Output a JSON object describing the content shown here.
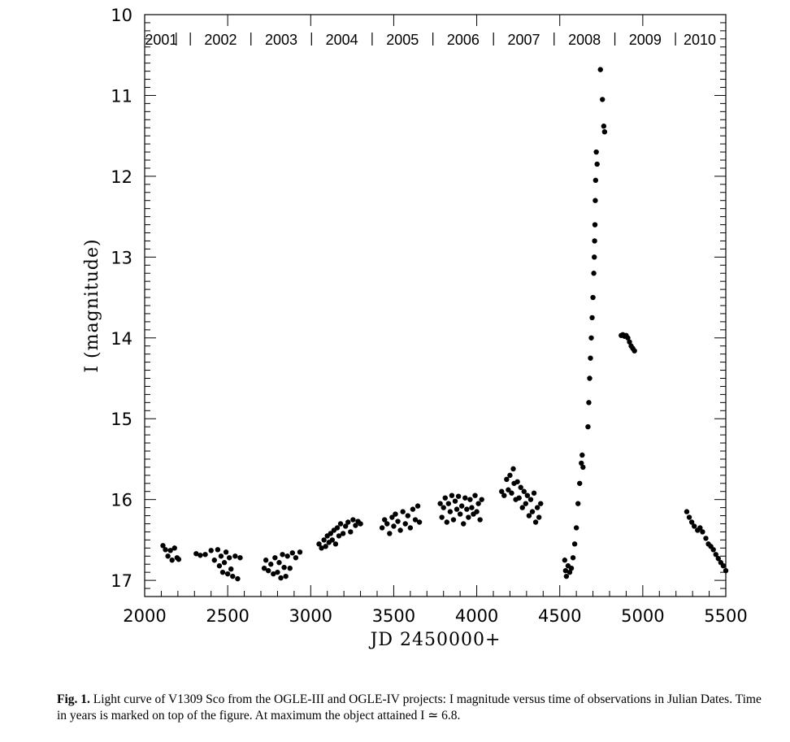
{
  "chart_data": {
    "type": "scatter",
    "title": "",
    "xlabel": "JD 2450000+",
    "ylabel": "I (magnitude)",
    "xlim": [
      2000,
      5500
    ],
    "ylim": [
      17.2,
      10
    ],
    "y_inverted": true,
    "x_ticks": [
      2000,
      2500,
      3000,
      3500,
      4000,
      4500,
      5000,
      5500
    ],
    "x_tick_labels": [
      "2000",
      "2500",
      "3000",
      "3500",
      "4000",
      "4500",
      "5000",
      "5500"
    ],
    "y_ticks": [
      10,
      11,
      12,
      13,
      14,
      15,
      16,
      17
    ],
    "y_tick_labels": [
      "10",
      "11",
      "12",
      "13",
      "14",
      "15",
      "16",
      "17"
    ],
    "grid": false,
    "legend": "none",
    "marker_color": "#000000",
    "years": [
      "2001",
      "2002",
      "2003",
      "2004",
      "2005",
      "2006",
      "2007",
      "2008",
      "2009",
      "2010"
    ],
    "year_boundaries": [
      2190,
      2275,
      2640,
      3005,
      3370,
      3736,
      4101,
      4466,
      4832,
      5197
    ],
    "series": [
      {
        "points": [
          [
            2110,
            16.57
          ],
          [
            2125,
            16.62
          ],
          [
            2140,
            16.7
          ],
          [
            2155,
            16.63
          ],
          [
            2165,
            16.75
          ],
          [
            2180,
            16.6
          ],
          [
            2195,
            16.72
          ],
          [
            2205,
            16.74
          ],
          [
            2310,
            16.67
          ],
          [
            2335,
            16.69
          ],
          [
            2365,
            16.68
          ],
          [
            2400,
            16.63
          ],
          [
            2420,
            16.75
          ],
          [
            2440,
            16.62
          ],
          [
            2450,
            16.82
          ],
          [
            2460,
            16.7
          ],
          [
            2470,
            16.9
          ],
          [
            2480,
            16.78
          ],
          [
            2490,
            16.65
          ],
          [
            2500,
            16.92
          ],
          [
            2510,
            16.72
          ],
          [
            2520,
            16.86
          ],
          [
            2530,
            16.95
          ],
          [
            2545,
            16.7
          ],
          [
            2560,
            16.98
          ],
          [
            2575,
            16.72
          ],
          [
            2720,
            16.85
          ],
          [
            2730,
            16.75
          ],
          [
            2745,
            16.88
          ],
          [
            2760,
            16.8
          ],
          [
            2775,
            16.92
          ],
          [
            2785,
            16.72
          ],
          [
            2800,
            16.9
          ],
          [
            2810,
            16.78
          ],
          [
            2820,
            16.97
          ],
          [
            2830,
            16.68
          ],
          [
            2840,
            16.84
          ],
          [
            2850,
            16.95
          ],
          [
            2860,
            16.7
          ],
          [
            2875,
            16.85
          ],
          [
            2890,
            16.66
          ],
          [
            2910,
            16.72
          ],
          [
            2935,
            16.65
          ],
          [
            3050,
            16.55
          ],
          [
            3065,
            16.6
          ],
          [
            3080,
            16.5
          ],
          [
            3090,
            16.58
          ],
          [
            3100,
            16.45
          ],
          [
            3110,
            16.53
          ],
          [
            3120,
            16.42
          ],
          [
            3130,
            16.5
          ],
          [
            3140,
            16.38
          ],
          [
            3150,
            16.55
          ],
          [
            3160,
            16.35
          ],
          [
            3170,
            16.45
          ],
          [
            3180,
            16.3
          ],
          [
            3195,
            16.42
          ],
          [
            3210,
            16.33
          ],
          [
            3225,
            16.28
          ],
          [
            3240,
            16.4
          ],
          [
            3255,
            16.25
          ],
          [
            3270,
            16.32
          ],
          [
            3285,
            16.27
          ],
          [
            3300,
            16.3
          ],
          [
            3430,
            16.35
          ],
          [
            3445,
            16.25
          ],
          [
            3460,
            16.3
          ],
          [
            3475,
            16.42
          ],
          [
            3490,
            16.22
          ],
          [
            3500,
            16.33
          ],
          [
            3510,
            16.18
          ],
          [
            3525,
            16.27
          ],
          [
            3540,
            16.38
          ],
          [
            3555,
            16.15
          ],
          [
            3570,
            16.3
          ],
          [
            3585,
            16.2
          ],
          [
            3600,
            16.35
          ],
          [
            3615,
            16.12
          ],
          [
            3630,
            16.25
          ],
          [
            3645,
            16.08
          ],
          [
            3655,
            16.28
          ],
          [
            3780,
            16.05
          ],
          [
            3790,
            16.22
          ],
          [
            3800,
            16.1
          ],
          [
            3810,
            15.98
          ],
          [
            3820,
            16.28
          ],
          [
            3830,
            16.05
          ],
          [
            3840,
            16.15
          ],
          [
            3850,
            15.95
          ],
          [
            3860,
            16.25
          ],
          [
            3870,
            16.02
          ],
          [
            3880,
            16.12
          ],
          [
            3890,
            15.96
          ],
          [
            3900,
            16.18
          ],
          [
            3910,
            16.08
          ],
          [
            3920,
            16.3
          ],
          [
            3930,
            15.98
          ],
          [
            3940,
            16.12
          ],
          [
            3950,
            16.22
          ],
          [
            3960,
            16.0
          ],
          [
            3970,
            16.1
          ],
          [
            3980,
            16.18
          ],
          [
            3990,
            15.95
          ],
          [
            4000,
            16.15
          ],
          [
            4010,
            16.05
          ],
          [
            4020,
            16.25
          ],
          [
            4030,
            16.0
          ],
          [
            4150,
            15.9
          ],
          [
            4165,
            15.95
          ],
          [
            4180,
            15.75
          ],
          [
            4190,
            15.88
          ],
          [
            4200,
            15.7
          ],
          [
            4210,
            15.92
          ],
          [
            4220,
            15.62
          ],
          [
            4225,
            15.8
          ],
          [
            4235,
            16.0
          ],
          [
            4245,
            15.78
          ],
          [
            4255,
            15.98
          ],
          [
            4265,
            15.85
          ],
          [
            4275,
            16.1
          ],
          [
            4285,
            15.9
          ],
          [
            4295,
            16.05
          ],
          [
            4305,
            15.95
          ],
          [
            4315,
            16.2
          ],
          [
            4325,
            16.0
          ],
          [
            4335,
            16.15
          ],
          [
            4345,
            15.92
          ],
          [
            4355,
            16.28
          ],
          [
            4365,
            16.1
          ],
          [
            4375,
            16.22
          ],
          [
            4385,
            16.05
          ],
          [
            4530,
            16.75
          ],
          [
            4535,
            16.88
          ],
          [
            4540,
            16.95
          ],
          [
            4550,
            16.82
          ],
          [
            4560,
            16.9
          ],
          [
            4570,
            16.85
          ],
          [
            4580,
            16.72
          ],
          [
            4590,
            16.55
          ],
          [
            4600,
            16.35
          ],
          [
            4610,
            16.05
          ],
          [
            4620,
            15.8
          ],
          [
            4630,
            15.55
          ],
          [
            4635,
            15.45
          ],
          [
            4640,
            15.6
          ],
          [
            4670,
            15.1
          ],
          [
            4675,
            14.8
          ],
          [
            4680,
            14.5
          ],
          [
            4685,
            14.25
          ],
          [
            4690,
            14.0
          ],
          [
            4695,
            13.75
          ],
          [
            4700,
            13.5
          ],
          [
            4705,
            13.2
          ],
          [
            4708,
            13.0
          ],
          [
            4710,
            12.8
          ],
          [
            4712,
            12.6
          ],
          [
            4714,
            12.3
          ],
          [
            4716,
            12.05
          ],
          [
            4720,
            11.7
          ],
          [
            4725,
            11.85
          ],
          [
            4745,
            10.68
          ],
          [
            4757,
            11.05
          ],
          [
            4765,
            11.38
          ],
          [
            4770,
            11.45
          ],
          [
            4870,
            13.97
          ],
          [
            4880,
            13.96
          ],
          [
            4890,
            13.98
          ],
          [
            4900,
            13.97
          ],
          [
            4910,
            14.0
          ],
          [
            4920,
            14.05
          ],
          [
            4930,
            14.1
          ],
          [
            4940,
            14.13
          ],
          [
            4950,
            14.16
          ],
          [
            5265,
            16.15
          ],
          [
            5280,
            16.22
          ],
          [
            5295,
            16.28
          ],
          [
            5310,
            16.33
          ],
          [
            5330,
            16.38
          ],
          [
            5345,
            16.35
          ],
          [
            5360,
            16.4
          ],
          [
            5380,
            16.48
          ],
          [
            5395,
            16.55
          ],
          [
            5410,
            16.58
          ],
          [
            5425,
            16.62
          ],
          [
            5440,
            16.68
          ],
          [
            5455,
            16.73
          ],
          [
            5470,
            16.78
          ],
          [
            5485,
            16.82
          ],
          [
            5500,
            16.88
          ]
        ]
      }
    ]
  },
  "caption": {
    "label": "Fig. 1.",
    "text": "Light curve of V1309 Sco from the OGLE-III and OGLE-IV projects: I magnitude versus time of observations in Julian Dates. Time in years is marked on top of the figure. At maximum the object attained I ≃ 6.8."
  }
}
